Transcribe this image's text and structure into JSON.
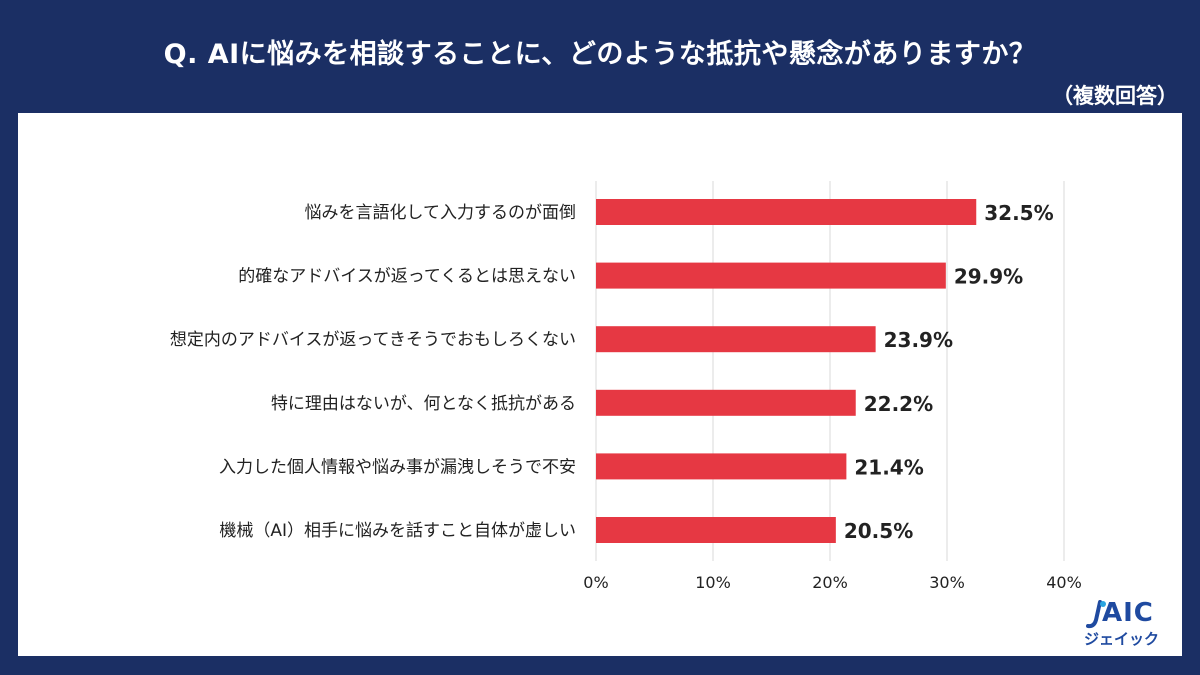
{
  "header": {
    "title": "Q. AIに悩みを相談することに、どのような抵抗や懸念がありますか？",
    "subtitle": "（複数回答）"
  },
  "logo": {
    "text": "AIC",
    "sub": "ジェイック"
  },
  "colors": {
    "background": "#1b2f64",
    "bar": "#e63843",
    "grid": "#d9d9d9",
    "logo": "#1f4aa0"
  },
  "chart_data": {
    "type": "bar",
    "orientation": "horizontal",
    "categories": [
      "悩みを言語化して入力するのが面倒",
      "的確なアドバイスが返ってくるとは思えない",
      "想定内のアドバイスが返ってきそうでおもしろくない",
      "特に理由はないが、何となく抵抗がある",
      "入力した個人情報や悩み事が漏洩しそうで不安",
      "機械（AI）相手に悩みを話すこと自体が虚しい"
    ],
    "values": [
      32.5,
      29.9,
      23.9,
      22.2,
      21.4,
      20.5
    ],
    "value_labels": [
      "32.5%",
      "29.9%",
      "23.9%",
      "22.2%",
      "21.4%",
      "20.5%"
    ],
    "xlim": [
      0,
      40
    ],
    "x_ticks": [
      0,
      10,
      20,
      30,
      40
    ],
    "x_tick_labels": [
      "0%",
      "10%",
      "20%",
      "30%",
      "40%"
    ],
    "grid": true,
    "legend": "none"
  }
}
